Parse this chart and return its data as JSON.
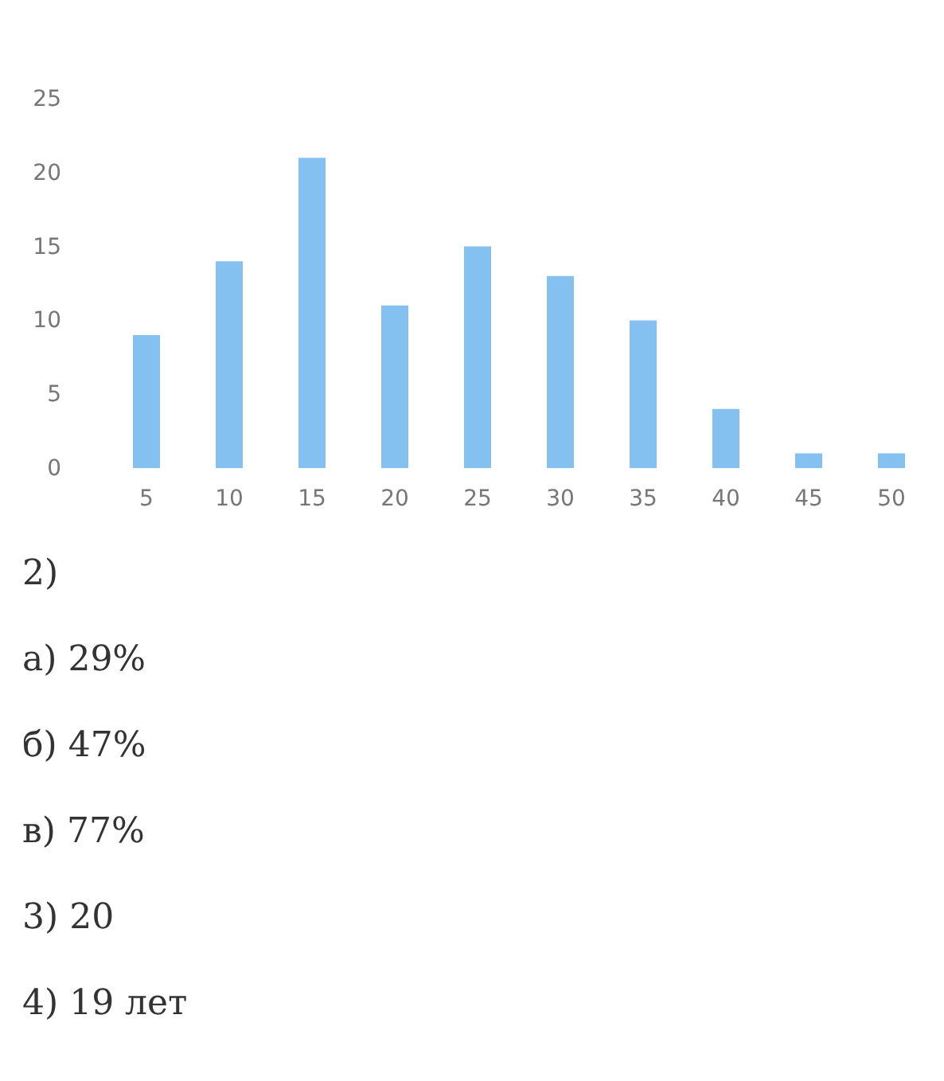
{
  "chart_data": {
    "type": "bar",
    "categories": [
      "5",
      "10",
      "15",
      "20",
      "25",
      "30",
      "35",
      "40",
      "45",
      "50"
    ],
    "values": [
      9,
      14,
      21,
      11,
      15,
      13,
      10,
      4,
      1,
      1
    ],
    "color": "#85c1f0",
    "ylim": [
      0,
      25
    ],
    "yticks": [
      0,
      5,
      10,
      15,
      20,
      25
    ],
    "grid": false,
    "annotations": [
      "2)",
      "а) 29%",
      "б) 47%",
      "в) 77%",
      "3) 20",
      "4) 19 лет"
    ]
  }
}
